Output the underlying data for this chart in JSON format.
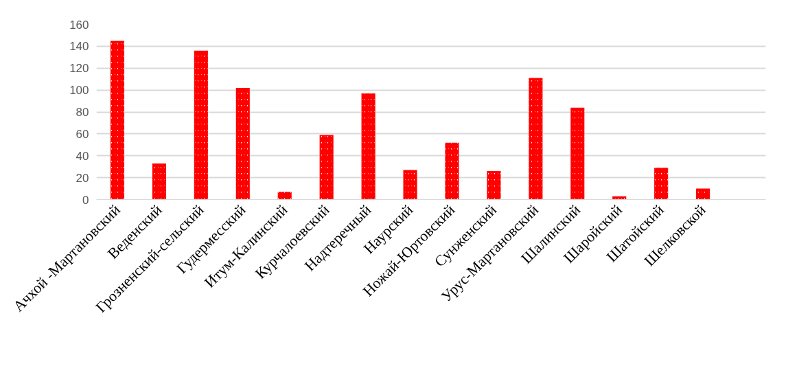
{
  "chart_data": {
    "type": "bar",
    "categories": [
      "Ачхой -Мартановский",
      "Веденский",
      "Грозненский-сельский",
      "Гудермесский",
      "Итум-Калинский",
      "Курчалоевский",
      "Надтеречный",
      "Наурский",
      "Ножай-Юртовский",
      "Сунженский",
      "Урус-Мартановский",
      "Шалинский",
      "Шаройский",
      "Шатойский",
      "Шелковской",
      null
    ],
    "values": [
      145,
      33,
      136,
      102,
      7,
      59,
      97,
      27,
      52,
      26,
      111,
      84,
      3,
      29,
      10,
      null
    ],
    "color": "#ff0000",
    "ylim": [
      0,
      160
    ],
    "yticks": [
      0,
      20,
      40,
      60,
      80,
      100,
      120,
      140,
      160
    ],
    "grid": "y"
  }
}
